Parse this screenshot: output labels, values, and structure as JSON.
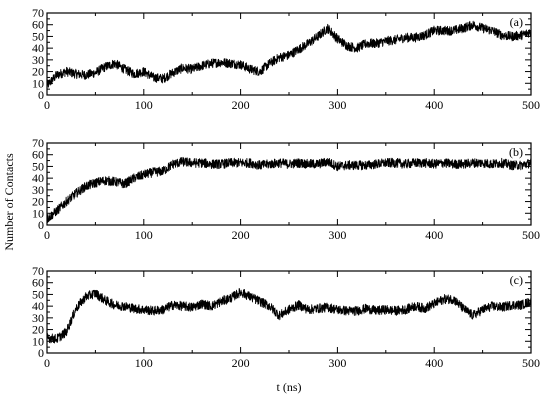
{
  "chart_data": {
    "type": "line",
    "xlabel": "t (ns)",
    "ylabel": "Number of Contacts",
    "xlim": [
      0,
      500
    ],
    "ylim": [
      0,
      70
    ],
    "x_ticks": [
      0,
      100,
      200,
      300,
      400,
      500
    ],
    "y_ticks": [
      0,
      10,
      20,
      30,
      40,
      50,
      60,
      70
    ],
    "grid": false,
    "line_color": "#000000",
    "panels": [
      {
        "label": "(a)",
        "series": [
          {
            "x": [
              0,
              10,
              20,
              30,
              40,
              50,
              60,
              70,
              80,
              90,
              100,
              110,
              120,
              130,
              140,
              150,
              160,
              170,
              180,
              190,
              200,
              210,
              220,
              230,
              240,
              250,
              260,
              270,
              280,
              290,
              300,
              310,
              320,
              330,
              340,
              350,
              360,
              370,
              380,
              390,
              400,
              410,
              420,
              430,
              440,
              450,
              460,
              470,
              480,
              490,
              500
            ],
            "y": [
              8,
              17,
              20,
              18,
              17,
              19,
              24,
              27,
              22,
              18,
              20,
              15,
              14,
              19,
              23,
              22,
              25,
              27,
              28,
              27,
              26,
              22,
              20,
              27,
              32,
              34,
              39,
              44,
              50,
              57,
              48,
              42,
              40,
              44,
              44,
              46,
              47,
              49,
              49,
              51,
              55,
              55,
              55,
              57,
              60,
              57,
              55,
              51,
              50,
              51,
              54
            ]
          }
        ]
      },
      {
        "label": "(b)",
        "series": [
          {
            "x": [
              0,
              10,
              20,
              30,
              40,
              50,
              60,
              70,
              80,
              90,
              100,
              110,
              120,
              130,
              140,
              150,
              160,
              170,
              180,
              190,
              200,
              210,
              220,
              230,
              240,
              250,
              260,
              270,
              280,
              290,
              300,
              310,
              320,
              330,
              340,
              350,
              360,
              370,
              380,
              390,
              400,
              410,
              420,
              430,
              440,
              450,
              460,
              470,
              480,
              490,
              500
            ],
            "y": [
              5,
              12,
              20,
              27,
              33,
              36,
              38,
              37,
              35,
              40,
              43,
              45,
              46,
              52,
              54,
              53,
              53,
              52,
              52,
              53,
              53,
              53,
              51,
              52,
              53,
              52,
              53,
              52,
              52,
              54,
              50,
              51,
              51,
              51,
              52,
              53,
              53,
              52,
              53,
              53,
              52,
              53,
              52,
              52,
              53,
              53,
              52,
              53,
              51,
              51,
              53
            ]
          }
        ]
      },
      {
        "label": "(c)",
        "series": [
          {
            "x": [
              0,
              10,
              20,
              30,
              40,
              50,
              60,
              70,
              80,
              90,
              100,
              110,
              120,
              130,
              140,
              150,
              160,
              170,
              180,
              190,
              200,
              210,
              220,
              230,
              240,
              250,
              260,
              270,
              280,
              290,
              300,
              310,
              320,
              330,
              340,
              350,
              360,
              370,
              380,
              390,
              400,
              410,
              420,
              430,
              440,
              450,
              460,
              470,
              480,
              490,
              500
            ],
            "y": [
              13,
              12,
              18,
              38,
              48,
              51,
              45,
              41,
              40,
              38,
              37,
              36,
              37,
              41,
              40,
              39,
              42,
              40,
              44,
              47,
              52,
              48,
              44,
              40,
              32,
              37,
              41,
              37,
              38,
              39,
              37,
              36,
              36,
              38,
              36,
              37,
              36,
              37,
              40,
              38,
              42,
              46,
              46,
              38,
              32,
              37,
              40,
              39,
              41,
              41,
              44
            ]
          }
        ]
      }
    ]
  }
}
